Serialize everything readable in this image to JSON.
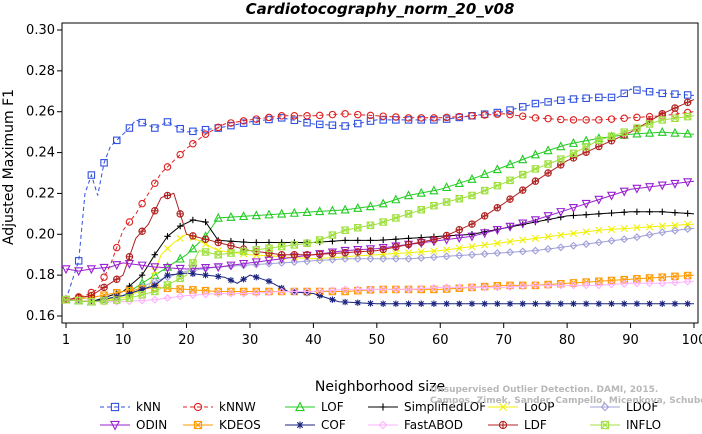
{
  "chart_data": {
    "type": "line",
    "title": "Cardiotocography_norm_20_v08",
    "xlabel": "Neighborhood size",
    "ylabel": "Adjusted Maximum F1",
    "xlim": [
      1,
      100
    ],
    "ylim": [
      0.16,
      0.3
    ],
    "x_ticks": [
      1,
      10,
      20,
      30,
      40,
      50,
      60,
      70,
      80,
      90,
      100
    ],
    "y_ticks": [
      0.16,
      0.18,
      0.2,
      0.22,
      0.24,
      0.26,
      0.28,
      0.3
    ],
    "y_tick_labels": [
      "0.16",
      "0.18",
      "0.20",
      "0.22",
      "0.24",
      "0.26",
      "0.28",
      "0.30"
    ],
    "grid": false,
    "legend_position": "bottom",
    "series": [
      {
        "name": "kNN",
        "color": "#3050e0",
        "dash": "4,3",
        "marker": "square",
        "points": [
          [
            1,
            0.168
          ],
          [
            3,
            0.187
          ],
          [
            4,
            0.22
          ],
          [
            5,
            0.229
          ],
          [
            6,
            0.219
          ],
          [
            7,
            0.235
          ],
          [
            8,
            0.243
          ],
          [
            10,
            0.249
          ],
          [
            11,
            0.252
          ],
          [
            12,
            0.256
          ],
          [
            15,
            0.252
          ],
          [
            17,
            0.255
          ],
          [
            20,
            0.25
          ],
          [
            25,
            0.252
          ],
          [
            30,
            0.255
          ],
          [
            35,
            0.257
          ],
          [
            40,
            0.254
          ],
          [
            45,
            0.253
          ],
          [
            50,
            0.256
          ],
          [
            55,
            0.256
          ],
          [
            60,
            0.256
          ],
          [
            65,
            0.258
          ],
          [
            70,
            0.26
          ],
          [
            75,
            0.264
          ],
          [
            80,
            0.266
          ],
          [
            85,
            0.267
          ],
          [
            88,
            0.267
          ],
          [
            90,
            0.271
          ],
          [
            95,
            0.269
          ],
          [
            100,
            0.268
          ]
        ]
      },
      {
        "name": "kNNW",
        "color": "#e02020",
        "dash": "4,3",
        "marker": "circle",
        "points": [
          [
            1,
            0.168
          ],
          [
            4,
            0.17
          ],
          [
            6,
            0.173
          ],
          [
            8,
            0.185
          ],
          [
            10,
            0.202
          ],
          [
            12,
            0.21
          ],
          [
            14,
            0.22
          ],
          [
            16,
            0.23
          ],
          [
            18,
            0.236
          ],
          [
            20,
            0.242
          ],
          [
            23,
            0.249
          ],
          [
            26,
            0.254
          ],
          [
            30,
            0.256
          ],
          [
            35,
            0.258
          ],
          [
            40,
            0.258
          ],
          [
            45,
            0.259
          ],
          [
            50,
            0.258
          ],
          [
            55,
            0.257
          ],
          [
            60,
            0.257
          ],
          [
            65,
            0.258
          ],
          [
            70,
            0.259
          ],
          [
            75,
            0.257
          ],
          [
            80,
            0.256
          ],
          [
            85,
            0.256
          ],
          [
            90,
            0.257
          ],
          [
            95,
            0.258
          ],
          [
            100,
            0.26
          ]
        ]
      },
      {
        "name": "LOF",
        "color": "#22cc22",
        "dash": "",
        "marker": "triangle",
        "points": [
          [
            1,
            0.168
          ],
          [
            5,
            0.167
          ],
          [
            10,
            0.17
          ],
          [
            15,
            0.18
          ],
          [
            20,
            0.19
          ],
          [
            23,
            0.199
          ],
          [
            25,
            0.208
          ],
          [
            30,
            0.209
          ],
          [
            35,
            0.21
          ],
          [
            40,
            0.211
          ],
          [
            45,
            0.212
          ],
          [
            50,
            0.214
          ],
          [
            55,
            0.219
          ],
          [
            60,
            0.222
          ],
          [
            65,
            0.227
          ],
          [
            70,
            0.233
          ],
          [
            75,
            0.239
          ],
          [
            80,
            0.244
          ],
          [
            85,
            0.247
          ],
          [
            90,
            0.249
          ],
          [
            95,
            0.25
          ],
          [
            100,
            0.249
          ]
        ]
      },
      {
        "name": "SimplifiedLOF",
        "color": "#000000",
        "dash": "",
        "marker": "plus",
        "points": [
          [
            1,
            0.168
          ],
          [
            5,
            0.167
          ],
          [
            10,
            0.172
          ],
          [
            13,
            0.18
          ],
          [
            15,
            0.19
          ],
          [
            17,
            0.199
          ],
          [
            19,
            0.204
          ],
          [
            21,
            0.207
          ],
          [
            23,
            0.206
          ],
          [
            25,
            0.197
          ],
          [
            30,
            0.196
          ],
          [
            35,
            0.196
          ],
          [
            40,
            0.196
          ],
          [
            45,
            0.197
          ],
          [
            50,
            0.197
          ],
          [
            55,
            0.198
          ],
          [
            60,
            0.199
          ],
          [
            65,
            0.2
          ],
          [
            70,
            0.203
          ],
          [
            75,
            0.206
          ],
          [
            80,
            0.209
          ],
          [
            85,
            0.21
          ],
          [
            90,
            0.211
          ],
          [
            95,
            0.211
          ],
          [
            100,
            0.21
          ]
        ]
      },
      {
        "name": "LoOP",
        "color": "#f0f000",
        "dash": "",
        "marker": "cross",
        "points": [
          [
            1,
            0.168
          ],
          [
            5,
            0.167
          ],
          [
            10,
            0.169
          ],
          [
            14,
            0.174
          ],
          [
            16,
            0.19
          ],
          [
            18,
            0.196
          ],
          [
            20,
            0.2
          ],
          [
            25,
            0.192
          ],
          [
            30,
            0.19
          ],
          [
            35,
            0.189
          ],
          [
            40,
            0.188
          ],
          [
            45,
            0.189
          ],
          [
            50,
            0.19
          ],
          [
            55,
            0.191
          ],
          [
            60,
            0.192
          ],
          [
            65,
            0.194
          ],
          [
            70,
            0.196
          ],
          [
            75,
            0.198
          ],
          [
            80,
            0.2
          ],
          [
            85,
            0.202
          ],
          [
            90,
            0.203
          ],
          [
            95,
            0.204
          ],
          [
            100,
            0.205
          ]
        ]
      },
      {
        "name": "LDOF",
        "color": "#a0a0d8",
        "dash": "",
        "marker": "diamond",
        "points": [
          [
            1,
            0.168
          ],
          [
            5,
            0.167
          ],
          [
            10,
            0.17
          ],
          [
            15,
            0.177
          ],
          [
            20,
            0.182
          ],
          [
            25,
            0.184
          ],
          [
            30,
            0.185
          ],
          [
            35,
            0.186
          ],
          [
            40,
            0.187
          ],
          [
            45,
            0.188
          ],
          [
            50,
            0.188
          ],
          [
            55,
            0.188
          ],
          [
            60,
            0.189
          ],
          [
            65,
            0.19
          ],
          [
            70,
            0.191
          ],
          [
            75,
            0.192
          ],
          [
            80,
            0.194
          ],
          [
            85,
            0.196
          ],
          [
            90,
            0.198
          ],
          [
            95,
            0.201
          ],
          [
            100,
            0.203
          ]
        ]
      },
      {
        "name": "ODIN",
        "color": "#9a20d0",
        "dash": "",
        "marker": "triangle-down",
        "points": [
          [
            1,
            0.183
          ],
          [
            3,
            0.182
          ],
          [
            5,
            0.183
          ],
          [
            8,
            0.184
          ],
          [
            10,
            0.186
          ],
          [
            15,
            0.184
          ],
          [
            20,
            0.183
          ],
          [
            25,
            0.184
          ],
          [
            30,
            0.186
          ],
          [
            35,
            0.188
          ],
          [
            40,
            0.19
          ],
          [
            45,
            0.192
          ],
          [
            50,
            0.193
          ],
          [
            55,
            0.195
          ],
          [
            60,
            0.197
          ],
          [
            65,
            0.199
          ],
          [
            70,
            0.203
          ],
          [
            75,
            0.207
          ],
          [
            80,
            0.212
          ],
          [
            85,
            0.217
          ],
          [
            90,
            0.222
          ],
          [
            95,
            0.224
          ],
          [
            100,
            0.226
          ]
        ]
      },
      {
        "name": "KDEOS",
        "color": "#ff9900",
        "dash": "",
        "marker": "square-x",
        "points": [
          [
            1,
            0.168
          ],
          [
            5,
            0.169
          ],
          [
            10,
            0.172
          ],
          [
            15,
            0.174
          ],
          [
            20,
            0.173
          ],
          [
            25,
            0.172
          ],
          [
            30,
            0.172
          ],
          [
            35,
            0.172
          ],
          [
            40,
            0.172
          ],
          [
            45,
            0.172
          ],
          [
            50,
            0.173
          ],
          [
            55,
            0.173
          ],
          [
            60,
            0.173
          ],
          [
            65,
            0.174
          ],
          [
            70,
            0.175
          ],
          [
            75,
            0.175
          ],
          [
            80,
            0.176
          ],
          [
            85,
            0.177
          ],
          [
            90,
            0.178
          ],
          [
            95,
            0.179
          ],
          [
            100,
            0.18
          ]
        ]
      },
      {
        "name": "COF",
        "color": "#1a237e",
        "dash": "",
        "marker": "asterisk",
        "points": [
          [
            1,
            0.168
          ],
          [
            5,
            0.167
          ],
          [
            10,
            0.17
          ],
          [
            15,
            0.175
          ],
          [
            17,
            0.18
          ],
          [
            20,
            0.181
          ],
          [
            23,
            0.18
          ],
          [
            26,
            0.179
          ],
          [
            28,
            0.176
          ],
          [
            30,
            0.18
          ],
          [
            33,
            0.177
          ],
          [
            36,
            0.172
          ],
          [
            40,
            0.171
          ],
          [
            42,
            0.169
          ],
          [
            44,
            0.167
          ],
          [
            50,
            0.166
          ],
          [
            60,
            0.166
          ],
          [
            70,
            0.166
          ],
          [
            80,
            0.166
          ],
          [
            90,
            0.166
          ],
          [
            100,
            0.166
          ]
        ]
      },
      {
        "name": "FastABOD",
        "color": "#ffb0ff",
        "dash": "",
        "marker": "diamond",
        "points": [
          [
            1,
            0.168
          ],
          [
            5,
            0.167
          ],
          [
            10,
            0.167
          ],
          [
            15,
            0.168
          ],
          [
            20,
            0.17
          ],
          [
            25,
            0.171
          ],
          [
            30,
            0.171
          ],
          [
            35,
            0.172
          ],
          [
            40,
            0.172
          ],
          [
            45,
            0.173
          ],
          [
            50,
            0.173
          ],
          [
            55,
            0.173
          ],
          [
            60,
            0.174
          ],
          [
            65,
            0.174
          ],
          [
            70,
            0.174
          ],
          [
            75,
            0.175
          ],
          [
            80,
            0.175
          ],
          [
            85,
            0.175
          ],
          [
            90,
            0.176
          ],
          [
            95,
            0.176
          ],
          [
            100,
            0.177
          ]
        ]
      },
      {
        "name": "LDF",
        "color": "#b02020",
        "dash": "",
        "marker": "circle-plus",
        "points": [
          [
            1,
            0.168
          ],
          [
            5,
            0.17
          ],
          [
            10,
            0.18
          ],
          [
            12,
            0.198
          ],
          [
            14,
            0.205
          ],
          [
            16,
            0.218
          ],
          [
            18,
            0.22
          ],
          [
            20,
            0.2
          ],
          [
            25,
            0.196
          ],
          [
            30,
            0.192
          ],
          [
            35,
            0.19
          ],
          [
            40,
            0.19
          ],
          [
            45,
            0.191
          ],
          [
            50,
            0.192
          ],
          [
            55,
            0.195
          ],
          [
            60,
            0.198
          ],
          [
            65,
            0.205
          ],
          [
            70,
            0.215
          ],
          [
            75,
            0.226
          ],
          [
            80,
            0.236
          ],
          [
            85,
            0.243
          ],
          [
            90,
            0.25
          ],
          [
            95,
            0.259
          ],
          [
            100,
            0.266
          ]
        ]
      },
      {
        "name": "INFLO",
        "color": "#a0e040",
        "dash": "",
        "marker": "square-star",
        "points": [
          [
            1,
            0.168
          ],
          [
            5,
            0.167
          ],
          [
            10,
            0.168
          ],
          [
            15,
            0.172
          ],
          [
            20,
            0.18
          ],
          [
            22,
            0.192
          ],
          [
            25,
            0.19
          ],
          [
            30,
            0.192
          ],
          [
            35,
            0.194
          ],
          [
            40,
            0.196
          ],
          [
            45,
            0.202
          ],
          [
            50,
            0.205
          ],
          [
            55,
            0.21
          ],
          [
            60,
            0.215
          ],
          [
            65,
            0.219
          ],
          [
            70,
            0.225
          ],
          [
            75,
            0.232
          ],
          [
            80,
            0.238
          ],
          [
            85,
            0.246
          ],
          [
            90,
            0.251
          ],
          [
            95,
            0.256
          ],
          [
            100,
            0.258
          ]
        ]
      }
    ]
  },
  "watermark": {
    "line1": "Unsupervised Outlier Detection. DAMI, 2015.",
    "line2": "Campos, Zimek, Sander, Campello, Micenkova, Schubert, Assent, Houle"
  }
}
